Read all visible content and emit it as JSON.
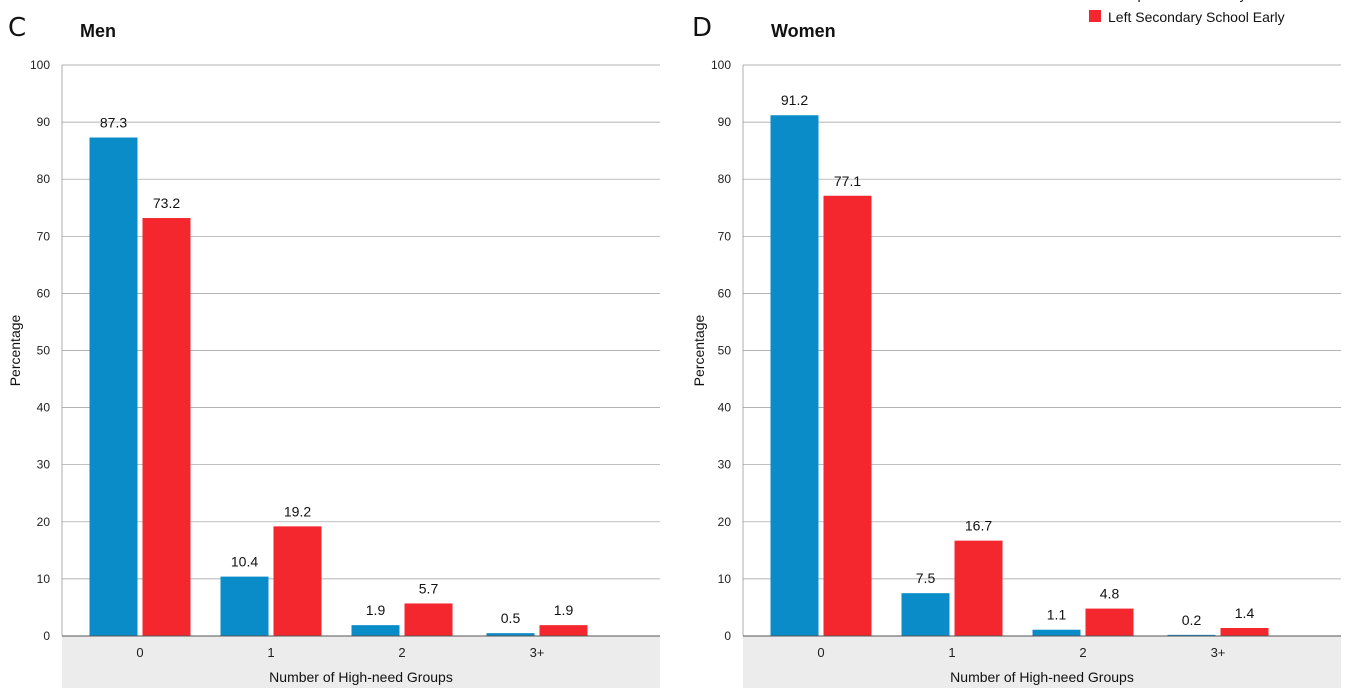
{
  "legend": {
    "items": [
      {
        "label": "Completed Secondary School",
        "color": "#0a8cc8"
      },
      {
        "label": "Left Secondary School Early",
        "color": "#f4262e"
      }
    ]
  },
  "chart_data": [
    {
      "type": "bar",
      "panel": "C",
      "title": "Men",
      "xlabel": "Number of High-need Groups",
      "ylabel": "Percentage",
      "ylim": [
        0,
        100
      ],
      "yticks": [
        0,
        10,
        20,
        30,
        40,
        50,
        60,
        70,
        80,
        90,
        100
      ],
      "categories": [
        "0",
        "1",
        "2",
        "3+"
      ],
      "series": [
        {
          "name": "Completed Secondary School",
          "color": "#0a8cc8",
          "values": [
            87.3,
            10.4,
            1.9,
            0.5
          ],
          "labels": [
            "87.3",
            "10.4",
            "1.9",
            "0.5"
          ]
        },
        {
          "name": "Left Secondary School Early",
          "color": "#f4262e",
          "values": [
            73.2,
            19.2,
            5.7,
            1.9
          ],
          "labels": [
            "73.2",
            "19.2",
            "5.7",
            "1.9"
          ]
        }
      ],
      "grid": true
    },
    {
      "type": "bar",
      "panel": "D",
      "title": "Women",
      "xlabel": "Number of High-need Groups",
      "ylabel": "Percentage",
      "ylim": [
        0,
        100
      ],
      "yticks": [
        0,
        10,
        20,
        30,
        40,
        50,
        60,
        70,
        80,
        90,
        100
      ],
      "categories": [
        "0",
        "1",
        "2",
        "3+"
      ],
      "series": [
        {
          "name": "Completed Secondary School",
          "color": "#0a8cc8",
          "values": [
            91.2,
            7.5,
            1.1,
            0.2
          ],
          "labels": [
            "91.2",
            "7.5",
            "1.1",
            "0.2"
          ]
        },
        {
          "name": "Left Secondary School Early",
          "color": "#f4262e",
          "values": [
            77.1,
            16.7,
            4.8,
            1.4
          ],
          "labels": [
            "77.1",
            "16.7",
            "4.8",
            "1.4"
          ]
        }
      ],
      "grid": true
    }
  ]
}
